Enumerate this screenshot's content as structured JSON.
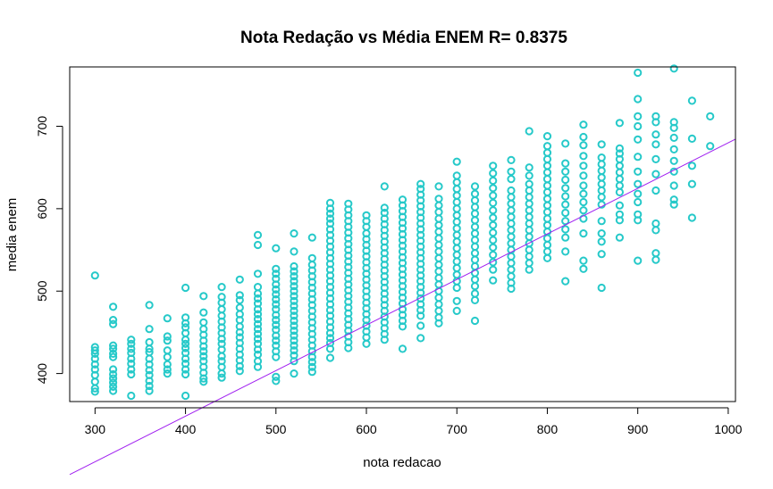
{
  "chart_data": {
    "type": "scatter",
    "title": "Nota Redação vs Média ENEM R= 0.8375",
    "xlabel": "nota redacao",
    "ylabel": "media enem",
    "xlim": [
      272,
      1008
    ],
    "ylim": [
      366,
      772
    ],
    "x_ticks": [
      300,
      400,
      500,
      600,
      700,
      800,
      900,
      1000
    ],
    "y_ticks": [
      400,
      500,
      600,
      700
    ],
    "point_color": "#26C9C9",
    "line_color": "#A020F0",
    "regression": {
      "intercept": 127,
      "slope": 0.553
    },
    "grid": false,
    "legend": "none",
    "groups": [
      {
        "x": 300,
        "y": [
          519,
          432,
          428,
          424,
          418,
          411,
          405,
          398,
          390,
          382,
          378
        ]
      },
      {
        "x": 320,
        "y": [
          481,
          465,
          460,
          434,
          430,
          424,
          420,
          405,
          399,
          394,
          389,
          384,
          379
        ]
      },
      {
        "x": 340,
        "y": [
          441,
          436,
          430,
          425,
          418,
          412,
          405,
          399,
          373
        ]
      },
      {
        "x": 360,
        "y": [
          483,
          454,
          438,
          430,
          426,
          418,
          411,
          404,
          398,
          391,
          385,
          379
        ]
      },
      {
        "x": 380,
        "y": [
          467,
          445,
          440,
          428,
          420,
          411,
          405,
          400
        ]
      },
      {
        "x": 400,
        "y": [
          504,
          468,
          461,
          456,
          449,
          441,
          436,
          431,
          425,
          418,
          412,
          405,
          399,
          373
        ]
      },
      {
        "x": 420,
        "y": [
          494,
          474,
          462,
          454,
          447,
          440,
          433,
          427,
          421,
          415,
          408,
          401,
          394,
          390
        ]
      },
      {
        "x": 440,
        "y": [
          505,
          493,
          486,
          478,
          470,
          463,
          456,
          449,
          442,
          436,
          429,
          421,
          415,
          408,
          400,
          395
        ]
      },
      {
        "x": 460,
        "y": [
          514,
          495,
          489,
          480,
          472,
          465,
          457,
          450,
          444,
          437,
          430,
          423,
          416,
          409,
          403
        ]
      },
      {
        "x": 480,
        "y": [
          568,
          556,
          521,
          505,
          497,
          491,
          485,
          478,
          472,
          466,
          460,
          454,
          448,
          442,
          436,
          429,
          423,
          415,
          408
        ]
      },
      {
        "x": 500,
        "y": [
          552,
          527,
          521,
          515,
          508,
          502,
          496,
          490,
          484,
          478,
          471,
          465,
          459,
          453,
          446,
          440,
          434,
          427,
          420,
          396,
          391
        ]
      },
      {
        "x": 520,
        "y": [
          570,
          548,
          530,
          524,
          518,
          512,
          506,
          500,
          494,
          488,
          482,
          476,
          470,
          464,
          458,
          452,
          446,
          440,
          434,
          428,
          422,
          415,
          400
        ]
      },
      {
        "x": 540,
        "y": [
          565,
          540,
          532,
          525,
          518,
          511,
          504,
          497,
          490,
          483,
          476,
          469,
          462,
          455,
          448,
          441,
          434,
          427,
          420,
          414,
          408,
          402
        ]
      },
      {
        "x": 560,
        "y": [
          607,
          600,
          594,
          588,
          582,
          575,
          568,
          561,
          554,
          547,
          540,
          533,
          526,
          519,
          512,
          505,
          498,
          491,
          484,
          477,
          470,
          463,
          456,
          449,
          443,
          437,
          430,
          419
        ]
      },
      {
        "x": 580,
        "y": [
          606,
          599,
          592,
          585,
          578,
          571,
          564,
          557,
          550,
          543,
          536,
          529,
          522,
          515,
          508,
          501,
          494,
          487,
          480,
          473,
          466,
          459,
          452,
          445,
          438,
          431
        ]
      },
      {
        "x": 600,
        "y": [
          592,
          585,
          578,
          570,
          563,
          556,
          549,
          542,
          535,
          528,
          521,
          514,
          507,
          500,
          493,
          486,
          479,
          472,
          465,
          458,
          451,
          444,
          436
        ]
      },
      {
        "x": 620,
        "y": [
          627,
          601,
          595,
          588,
          581,
          574,
          567,
          560,
          553,
          546,
          539,
          532,
          525,
          518,
          511,
          504,
          497,
          490,
          483,
          476,
          469,
          462,
          455,
          448,
          441
        ]
      },
      {
        "x": 640,
        "y": [
          611,
          604,
          597,
          590,
          583,
          576,
          569,
          562,
          555,
          548,
          541,
          534,
          527,
          520,
          513,
          506,
          499,
          492,
          485,
          478,
          471,
          464,
          457,
          430
        ]
      },
      {
        "x": 660,
        "y": [
          630,
          624,
          617,
          610,
          603,
          596,
          589,
          582,
          575,
          568,
          561,
          554,
          547,
          540,
          533,
          526,
          519,
          512,
          505,
          498,
          491,
          484,
          477,
          470,
          458,
          443
        ]
      },
      {
        "x": 680,
        "y": [
          627,
          612,
          604,
          596,
          588,
          580,
          572,
          564,
          556,
          548,
          540,
          532,
          524,
          516,
          508,
          500,
          492,
          484,
          476,
          468,
          461
        ]
      },
      {
        "x": 700,
        "y": [
          657,
          640,
          632,
          624,
          616,
          608,
          600,
          592,
          584,
          576,
          568,
          560,
          552,
          544,
          536,
          528,
          520,
          512,
          504,
          488,
          476
        ]
      },
      {
        "x": 720,
        "y": [
          627,
          618,
          610,
          602,
          594,
          586,
          578,
          570,
          562,
          554,
          546,
          538,
          530,
          522,
          514,
          506,
          497,
          489,
          464
        ]
      },
      {
        "x": 740,
        "y": [
          652,
          643,
          634,
          625,
          616,
          607,
          598,
          589,
          580,
          571,
          562,
          553,
          544,
          535,
          526,
          513
        ]
      },
      {
        "x": 760,
        "y": [
          659,
          645,
          636,
          622,
          614,
          606,
          598,
          590,
          582,
          574,
          566,
          558,
          550,
          542,
          534,
          526,
          518,
          510,
          503
        ]
      },
      {
        "x": 780,
        "y": [
          694,
          650,
          640,
          630,
          622,
          614,
          606,
          598,
          590,
          582,
          574,
          566,
          558,
          550,
          542,
          534,
          526
        ]
      },
      {
        "x": 800,
        "y": [
          688,
          676,
          668,
          660,
          652,
          644,
          636,
          628,
          620,
          612,
          604,
          596,
          588,
          580,
          572,
          564,
          556,
          548,
          540
        ]
      },
      {
        "x": 820,
        "y": [
          679,
          655,
          645,
          635,
          625,
          615,
          605,
          595,
          585,
          575,
          565,
          548,
          512
        ]
      },
      {
        "x": 840,
        "y": [
          702,
          687,
          677,
          664,
          652,
          640,
          628,
          618,
          608,
          598,
          588,
          570,
          537,
          527
        ]
      },
      {
        "x": 860,
        "y": [
          678,
          662,
          654,
          646,
          638,
          630,
          622,
          614,
          605,
          585,
          570,
          560,
          545,
          504
        ]
      },
      {
        "x": 880,
        "y": [
          704,
          673,
          667,
          660,
          652,
          644,
          636,
          628,
          620,
          604,
          593,
          586,
          565
        ]
      },
      {
        "x": 900,
        "y": [
          765,
          733,
          712,
          700,
          684,
          663,
          645,
          630,
          618,
          608,
          593,
          586,
          537
        ]
      },
      {
        "x": 920,
        "y": [
          712,
          705,
          690,
          678,
          660,
          642,
          622,
          582,
          574,
          546,
          538
        ]
      },
      {
        "x": 940,
        "y": [
          770,
          705,
          698,
          686,
          672,
          658,
          645,
          628,
          611,
          605
        ]
      },
      {
        "x": 960,
        "y": [
          731,
          685,
          652,
          630,
          589
        ]
      },
      {
        "x": 980,
        "y": [
          712,
          676
        ]
      }
    ]
  }
}
